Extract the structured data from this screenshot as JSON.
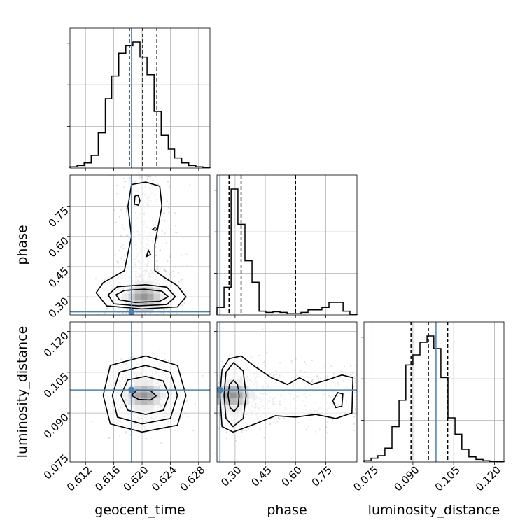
{
  "chart_data": {
    "type": "corner",
    "parameters": [
      "geocent_time",
      "phase",
      "luminosity_distance"
    ],
    "ranges": {
      "geocent_time": [
        0.6098,
        0.6296
      ],
      "phase": [
        0.21,
        0.905
      ],
      "luminosity_distance": [
        0.072,
        0.1235
      ]
    },
    "ticks": {
      "geocent_time": [
        0.612,
        0.616,
        0.62,
        0.624,
        0.628
      ],
      "phase": [
        0.3,
        0.45,
        0.6,
        0.75
      ],
      "luminosity_distance": [
        0.075,
        0.09,
        0.105,
        0.12
      ]
    },
    "tick_labels": {
      "geocent_time": [
        "0.612",
        "0.616",
        "0.620",
        "0.624",
        "0.628"
      ],
      "phase": [
        "0.30",
        "0.45",
        "0.60",
        "0.75"
      ],
      "luminosity_distance": [
        "0.075",
        "0.090",
        "0.105",
        "0.120"
      ]
    },
    "truths": {
      "geocent_time": 0.6185,
      "phase": 0.225,
      "luminosity_distance": 0.0985
    },
    "quantiles": {
      "geocent_time": [
        0.6182,
        0.6201,
        0.6221
      ],
      "phase": [
        0.27,
        0.33,
        0.6
      ],
      "luminosity_distance": [
        0.0893,
        0.0957,
        0.1028
      ]
    },
    "histograms": {
      "geocent_time": {
        "edges": [
          0.6098,
          0.6108,
          0.6118,
          0.6128,
          0.6138,
          0.6148,
          0.6157,
          0.6167,
          0.6177,
          0.6187,
          0.6197,
          0.6207,
          0.6217,
          0.6227,
          0.6237,
          0.6246,
          0.6256,
          0.6266,
          0.6276,
          0.6286,
          0.6296
        ],
        "counts": [
          0.01,
          0.02,
          0.04,
          0.1,
          0.28,
          0.55,
          0.73,
          0.91,
          0.97,
          1.0,
          0.88,
          0.74,
          0.45,
          0.26,
          0.15,
          0.08,
          0.04,
          0.02,
          0.01,
          0.005
        ]
      },
      "phase": {
        "edges": [
          0.21,
          0.245,
          0.28,
          0.314,
          0.349,
          0.384,
          0.419,
          0.453,
          0.488,
          0.523,
          0.558,
          0.592,
          0.627,
          0.662,
          0.697,
          0.731,
          0.766,
          0.801,
          0.836,
          0.87,
          0.905
        ],
        "counts": [
          0.06,
          0.22,
          1.0,
          0.72,
          0.43,
          0.26,
          0.03,
          0.02,
          0.025,
          0.02,
          0.01,
          0.01,
          0.02,
          0.04,
          0.04,
          0.06,
          0.1,
          0.1,
          0.03,
          0.005
        ]
      },
      "luminosity_distance": {
        "edges": [
          0.072,
          0.0746,
          0.0771,
          0.0797,
          0.0823,
          0.0849,
          0.0874,
          0.09,
          0.0926,
          0.0952,
          0.0977,
          0.1003,
          0.1029,
          0.1055,
          0.108,
          0.1106,
          0.1132,
          0.1158,
          0.1183,
          0.1209,
          0.1235
        ],
        "counts": [
          0.01,
          0.03,
          0.05,
          0.11,
          0.28,
          0.49,
          0.77,
          0.85,
          0.95,
          1.0,
          0.9,
          0.67,
          0.35,
          0.22,
          0.1,
          0.04,
          0.02,
          0.01,
          0.005,
          0.002
        ]
      }
    },
    "density_2d": [
      {
        "x": "geocent_time",
        "y": "phase",
        "center": [
          0.6203,
          0.3
        ],
        "contours": [
          [
            [
              0.6163,
              0.31
            ],
            [
              0.6168,
              0.285
            ],
            [
              0.619,
              0.272
            ],
            [
              0.6225,
              0.278
            ],
            [
              0.6237,
              0.3
            ],
            [
              0.6228,
              0.328
            ],
            [
              0.6203,
              0.338
            ],
            [
              0.6175,
              0.332
            ]
          ],
          [
            [
              0.6152,
              0.31
            ],
            [
              0.616,
              0.265
            ],
            [
              0.6195,
              0.255
            ],
            [
              0.6235,
              0.262
            ],
            [
              0.6247,
              0.3
            ],
            [
              0.6235,
              0.348
            ],
            [
              0.6205,
              0.36
            ],
            [
              0.6165,
              0.35
            ]
          ],
          [
            [
              0.6135,
              0.32
            ],
            [
              0.615,
              0.255
            ],
            [
              0.62,
              0.24
            ],
            [
              0.625,
              0.25
            ],
            [
              0.6262,
              0.3
            ],
            [
              0.625,
              0.355
            ],
            [
              0.623,
              0.4
            ],
            [
              0.6218,
              0.43
            ],
            [
              0.6218,
              0.56
            ],
            [
              0.6228,
              0.75
            ],
            [
              0.6225,
              0.85
            ],
            [
              0.6205,
              0.87
            ],
            [
              0.6185,
              0.858
            ],
            [
              0.618,
              0.75
            ],
            [
              0.6185,
              0.6
            ],
            [
              0.6175,
              0.43
            ],
            [
              0.616,
              0.4
            ],
            [
              0.6145,
              0.37
            ]
          ]
        ],
        "islands": [
          [
            [
              0.6189,
              0.76
            ],
            [
              0.619,
              0.8
            ],
            [
              0.6194,
              0.805
            ],
            [
              0.6197,
              0.78
            ],
            [
              0.6195,
              0.755
            ]
          ],
          [
            [
              0.6215,
              0.635
            ],
            [
              0.6218,
              0.645
            ],
            [
              0.6222,
              0.64
            ],
            [
              0.6219,
              0.63
            ]
          ],
          [
            [
              0.6206,
              0.5
            ],
            [
              0.6209,
              0.53
            ],
            [
              0.6212,
              0.51
            ]
          ]
        ]
      },
      {
        "x": "geocent_time",
        "y": "luminosity_distance",
        "center": [
          0.6203,
          0.0965
        ],
        "contours": [
          [
            [
              0.6185,
              0.0965
            ],
            [
              0.6195,
              0.095
            ],
            [
              0.6212,
              0.0948
            ],
            [
              0.622,
              0.0963
            ],
            [
              0.6212,
              0.0982
            ],
            [
              0.6193,
              0.0985
            ]
          ],
          [
            [
              0.617,
              0.0965
            ],
            [
              0.618,
              0.091
            ],
            [
              0.6205,
              0.0895
            ],
            [
              0.623,
              0.091
            ],
            [
              0.6238,
              0.0965
            ],
            [
              0.623,
              0.1018
            ],
            [
              0.6205,
              0.1035
            ],
            [
              0.618,
              0.1022
            ]
          ],
          [
            [
              0.6158,
              0.0965
            ],
            [
              0.6165,
              0.0885
            ],
            [
              0.62,
              0.086
            ],
            [
              0.624,
              0.088
            ],
            [
              0.625,
              0.0965
            ],
            [
              0.624,
              0.105
            ],
            [
              0.6205,
              0.1075
            ],
            [
              0.6168,
              0.105
            ]
          ],
          [
            [
              0.6145,
              0.0965
            ],
            [
              0.6155,
              0.086
            ],
            [
              0.62,
              0.083
            ],
            [
              0.625,
              0.0855
            ],
            [
              0.6262,
              0.0965
            ],
            [
              0.625,
              0.1075
            ],
            [
              0.6205,
              0.111
            ],
            [
              0.6155,
              0.1075
            ]
          ]
        ],
        "islands": []
      },
      {
        "x": "phase",
        "y": "luminosity_distance",
        "center": [
          0.29,
          0.0965
        ],
        "contours": [
          [
            [
              0.265,
              0.0965
            ],
            [
              0.275,
              0.092
            ],
            [
              0.295,
              0.0905
            ],
            [
              0.315,
              0.0925
            ],
            [
              0.32,
              0.0965
            ],
            [
              0.312,
              0.1005
            ],
            [
              0.292,
              0.102
            ],
            [
              0.272,
              0.1005
            ]
          ],
          [
            [
              0.245,
              0.0965
            ],
            [
              0.255,
              0.088
            ],
            [
              0.29,
              0.085
            ],
            [
              0.34,
              0.088
            ],
            [
              0.355,
              0.0965
            ],
            [
              0.34,
              0.1055
            ],
            [
              0.292,
              0.1085
            ],
            [
              0.255,
              0.105
            ]
          ],
          [
            [
              0.225,
              0.0965
            ],
            [
              0.235,
              0.085
            ],
            [
              0.29,
              0.083
            ],
            [
              0.4,
              0.086
            ],
            [
              0.5,
              0.089
            ],
            [
              0.6,
              0.0885
            ],
            [
              0.7,
              0.0895
            ],
            [
              0.8,
              0.088
            ],
            [
              0.88,
              0.09
            ],
            [
              0.885,
              0.103
            ],
            [
              0.83,
              0.104
            ],
            [
              0.75,
              0.102
            ],
            [
              0.68,
              0.1005
            ],
            [
              0.62,
              0.103
            ],
            [
              0.56,
              0.1005
            ],
            [
              0.48,
              0.103
            ],
            [
              0.4,
              0.107
            ],
            [
              0.33,
              0.111
            ],
            [
              0.27,
              0.11
            ],
            [
              0.235,
              0.106
            ]
          ]
        ],
        "islands": [
          [
            [
              0.785,
              0.0945
            ],
            [
              0.8,
              0.092
            ],
            [
              0.83,
              0.0925
            ],
            [
              0.835,
              0.097
            ],
            [
              0.81,
              0.0975
            ]
          ]
        ]
      }
    ]
  }
}
